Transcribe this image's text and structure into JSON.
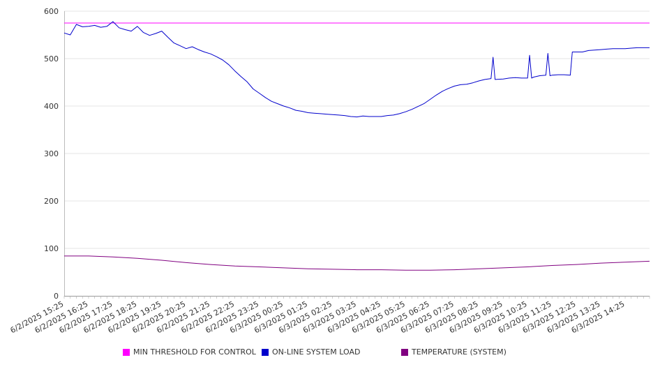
{
  "chart_data": {
    "type": "line",
    "title": "",
    "xlabel": "",
    "ylabel": "",
    "ylim": [
      0,
      600
    ],
    "y_ticks": [
      0,
      100,
      200,
      300,
      400,
      500,
      600
    ],
    "grid": true,
    "legend_position": "bottom",
    "x_tick_labels": [
      "6/2/2025 15:25",
      "6/2/2025 16:25",
      "6/2/2025 17:25",
      "6/2/2025 18:25",
      "6/2/2025 19:25",
      "6/2/2025 20:25",
      "6/2/2025 21:25",
      "6/2/2025 22:25",
      "6/2/2025 23:25",
      "6/3/2025 00:25",
      "6/3/2025 01:25",
      "6/3/2025 02:25",
      "6/3/2025 03:25",
      "6/3/2025 04:25",
      "6/3/2025 05:25",
      "6/3/2025 06:25",
      "6/3/2025 07:25",
      "6/3/2025 08:25",
      "6/3/2025 09:25",
      "6/3/2025 10:25",
      "6/3/2025 11:25",
      "6/3/2025 12:25",
      "6/3/2025 13:25",
      "6/3/2025 14:25"
    ],
    "x_range": [
      "6/2/2025 15:25",
      "6/3/2025 15:25"
    ],
    "series": [
      {
        "name": "MIN THRESHOLD FOR CONTROL",
        "color": "#ff00ff",
        "x": [
          "6/2/2025 15:25",
          "6/3/2025 15:25"
        ],
        "values": [
          575,
          575
        ]
      },
      {
        "name": "ON-LINE SYSTEM LOAD",
        "color": "#0000cc",
        "x": [
          "6/2/2025 15:25",
          "6/2/2025 15:40",
          "6/2/2025 15:55",
          "6/2/2025 16:10",
          "6/2/2025 16:25",
          "6/2/2025 16:40",
          "6/2/2025 16:55",
          "6/2/2025 17:10",
          "6/2/2025 17:25",
          "6/2/2025 17:40",
          "6/2/2025 17:55",
          "6/2/2025 18:10",
          "6/2/2025 18:25",
          "6/2/2025 18:40",
          "6/2/2025 18:55",
          "6/2/2025 19:10",
          "6/2/2025 19:25",
          "6/2/2025 19:40",
          "6/2/2025 19:55",
          "6/2/2025 20:10",
          "6/2/2025 20:25",
          "6/2/2025 20:40",
          "6/2/2025 20:55",
          "6/2/2025 21:10",
          "6/2/2025 21:25",
          "6/2/2025 21:40",
          "6/2/2025 21:55",
          "6/2/2025 22:10",
          "6/2/2025 22:25",
          "6/2/2025 22:40",
          "6/2/2025 22:55",
          "6/2/2025 23:10",
          "6/2/2025 23:25",
          "6/2/2025 23:40",
          "6/2/2025 23:55",
          "6/3/2025 00:10",
          "6/3/2025 00:25",
          "6/3/2025 00:40",
          "6/3/2025 00:55",
          "6/3/2025 01:10",
          "6/3/2025 01:25",
          "6/3/2025 01:40",
          "6/3/2025 01:55",
          "6/3/2025 02:10",
          "6/3/2025 02:25",
          "6/3/2025 02:40",
          "6/3/2025 02:55",
          "6/3/2025 03:10",
          "6/3/2025 03:25",
          "6/3/2025 03:40",
          "6/3/2025 03:55",
          "6/3/2025 04:10",
          "6/3/2025 04:25",
          "6/3/2025 04:40",
          "6/3/2025 04:55",
          "6/3/2025 05:10",
          "6/3/2025 05:25",
          "6/3/2025 05:40",
          "6/3/2025 05:55",
          "6/3/2025 06:10",
          "6/3/2025 06:25",
          "6/3/2025 06:40",
          "6/3/2025 06:55",
          "6/3/2025 07:10",
          "6/3/2025 07:25",
          "6/3/2025 07:40",
          "6/3/2025 07:55",
          "6/3/2025 08:10",
          "6/3/2025 08:25",
          "6/3/2025 08:40",
          "6/3/2025 08:55",
          "6/3/2025 09:00",
          "6/3/2025 09:05",
          "6/3/2025 09:25",
          "6/3/2025 09:40",
          "6/3/2025 09:55",
          "6/3/2025 10:10",
          "6/3/2025 10:25",
          "6/3/2025 10:30",
          "6/3/2025 10:35",
          "6/3/2025 10:40",
          "6/3/2025 10:55",
          "6/3/2025 11:10",
          "6/3/2025 11:15",
          "6/3/2025 11:20",
          "6/3/2025 11:25",
          "6/3/2025 11:40",
          "6/3/2025 11:55",
          "6/3/2025 12:10",
          "6/3/2025 12:15",
          "6/3/2025 12:20",
          "6/3/2025 12:25",
          "6/3/2025 12:40",
          "6/3/2025 12:55",
          "6/3/2025 13:10",
          "6/3/2025 13:25",
          "6/3/2025 13:40",
          "6/3/2025 13:55",
          "6/3/2025 14:10",
          "6/3/2025 14:25",
          "6/3/2025 14:40",
          "6/3/2025 14:55",
          "6/3/2025 15:10",
          "6/3/2025 15:25"
        ],
        "values": [
          554,
          550,
          572,
          567,
          568,
          570,
          566,
          568,
          578,
          565,
          561,
          558,
          568,
          555,
          549,
          553,
          558,
          545,
          533,
          527,
          521,
          525,
          519,
          514,
          510,
          504,
          497,
          487,
          474,
          462,
          451,
          436,
          427,
          418,
          410,
          405,
          400,
          396,
          391,
          389,
          386,
          385,
          384,
          383,
          382,
          381,
          380,
          378,
          377,
          379,
          378,
          378,
          378,
          380,
          381,
          384,
          388,
          393,
          399,
          405,
          414,
          423,
          431,
          437,
          442,
          445,
          446,
          449,
          453,
          456,
          458,
          503,
          456,
          457,
          459,
          460,
          459,
          459,
          507,
          459,
          461,
          464,
          465,
          511,
          464,
          465,
          466,
          466,
          465,
          514,
          514,
          514,
          514,
          517,
          518,
          519,
          520,
          521,
          521,
          521,
          522,
          523,
          523,
          523
        ]
      },
      {
        "name": "TEMPERATURE (SYSTEM)",
        "color": "#800080",
        "x": [
          "6/2/2025 15:25",
          "6/2/2025 16:25",
          "6/2/2025 17:25",
          "6/2/2025 18:25",
          "6/2/2025 19:25",
          "6/2/2025 20:25",
          "6/2/2025 21:25",
          "6/2/2025 22:25",
          "6/2/2025 23:25",
          "6/3/2025 00:25",
          "6/3/2025 01:25",
          "6/3/2025 02:25",
          "6/3/2025 03:25",
          "6/3/2025 04:25",
          "6/3/2025 05:25",
          "6/3/2025 06:25",
          "6/3/2025 07:25",
          "6/3/2025 08:25",
          "6/3/2025 09:25",
          "6/3/2025 10:25",
          "6/3/2025 11:25",
          "6/3/2025 12:25",
          "6/3/2025 13:25",
          "6/3/2025 14:25",
          "6/3/2025 15:25"
        ],
        "values": [
          84,
          84,
          82,
          79,
          75,
          70,
          66,
          63,
          61,
          59,
          57,
          56,
          55,
          55,
          54,
          54,
          55,
          57,
          59,
          61,
          64,
          66,
          69,
          71,
          73
        ]
      }
    ]
  }
}
